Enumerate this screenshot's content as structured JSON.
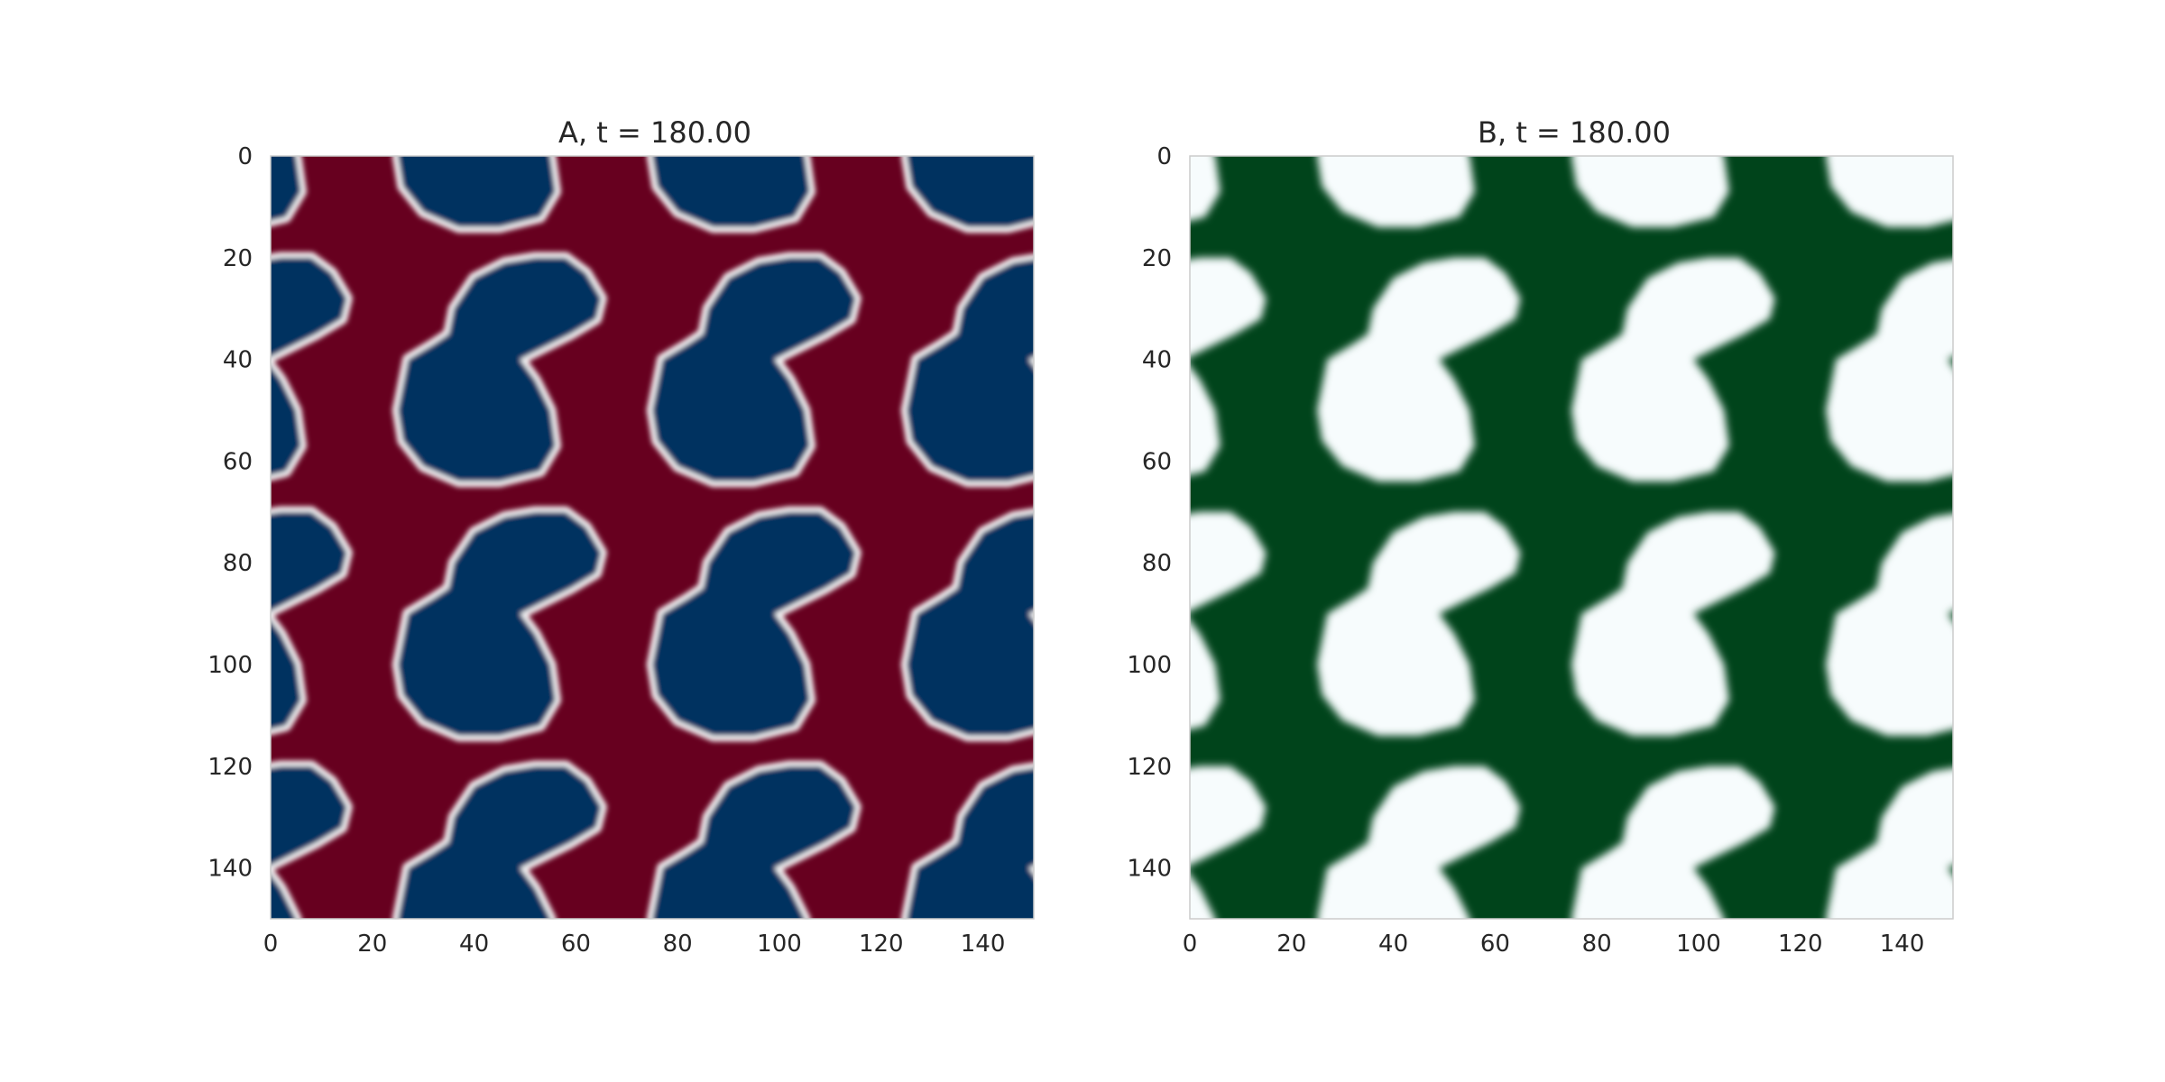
{
  "chart_data": [
    {
      "type": "heatmap",
      "title": "A, t = 180.00",
      "xlabel": "",
      "ylabel": "",
      "grid_size": [
        150,
        150
      ],
      "xlim": [
        0,
        150
      ],
      "ylim": [
        150,
        0
      ],
      "xticks": [
        0,
        20,
        40,
        60,
        80,
        100,
        120,
        140
      ],
      "yticks": [
        0,
        20,
        40,
        60,
        80,
        100,
        120,
        140
      ],
      "grid": false,
      "colormap": "RdBu",
      "colors": {
        "high": "#67001f",
        "mid": "#f7f7f7",
        "low": "#053061"
      }
    },
    {
      "type": "heatmap",
      "title": "B, t = 180.00",
      "xlabel": "",
      "ylabel": "",
      "grid_size": [
        150,
        150
      ],
      "xlim": [
        0,
        150
      ],
      "ylim": [
        150,
        0
      ],
      "xticks": [
        0,
        20,
        40,
        60,
        80,
        100,
        120,
        140
      ],
      "yticks": [
        0,
        20,
        40,
        60,
        80,
        100,
        120,
        140
      ],
      "grid": false,
      "colormap": "BuGn",
      "colors": {
        "high": "#00441b",
        "mid": "#66c2a4",
        "low": "#f7fcfd"
      }
    }
  ]
}
